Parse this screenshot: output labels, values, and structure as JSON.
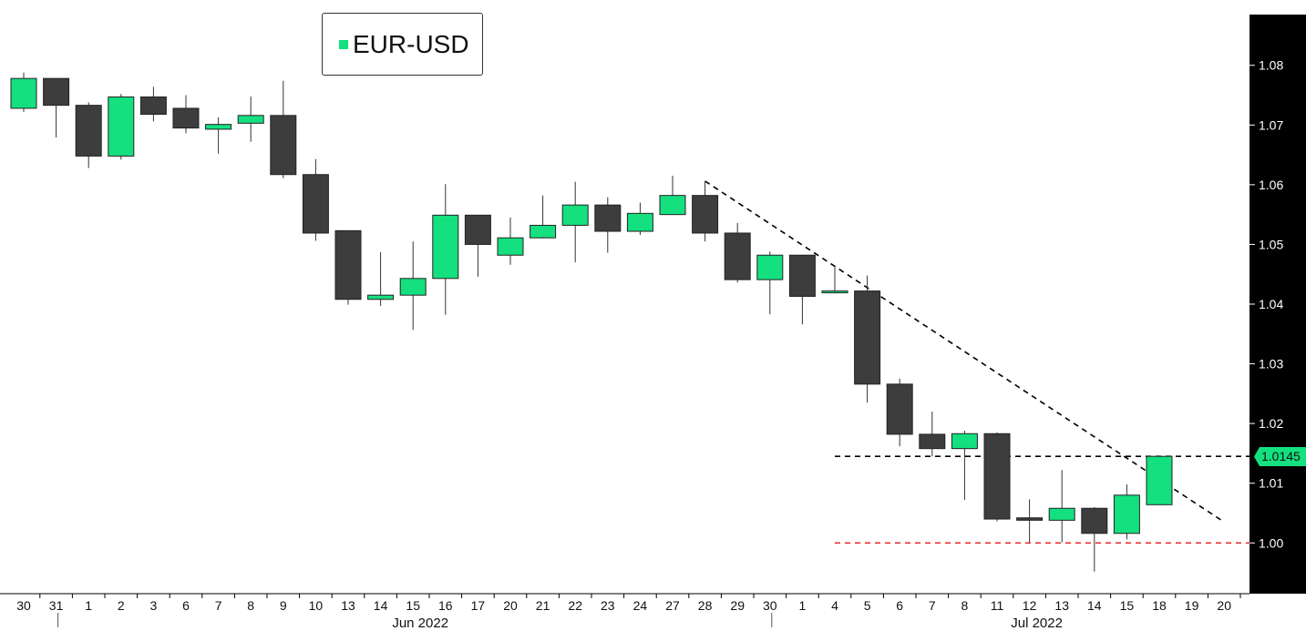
{
  "colors": {
    "up": "#14e07f",
    "down": "#3d3d3d",
    "axis_panel": "#000000",
    "axis_text": "#ffffff",
    "support_line": "#e83030",
    "trend_line": "#000000"
  },
  "legend": {
    "label": "EUR-USD"
  },
  "last_price_tag": "1.0145",
  "chart_data": {
    "type": "candlestick",
    "title": "",
    "series": [
      {
        "name": "EUR-USD"
      }
    ],
    "y_axis": {
      "position": "right",
      "ylim": [
        0.9915,
        1.0885
      ],
      "ticks": [
        "1.00",
        "1.01",
        "1.02",
        "1.03",
        "1.04",
        "1.05",
        "1.06",
        "1.07",
        "1.08"
      ]
    },
    "x_tick_labels": [
      "30",
      "31",
      "1",
      "2",
      "3",
      "6",
      "7",
      "8",
      "9",
      "10",
      "13",
      "14",
      "15",
      "16",
      "17",
      "20",
      "21",
      "22",
      "23",
      "24",
      "27",
      "28",
      "29",
      "30",
      "1",
      "4",
      "5",
      "6",
      "7",
      "8",
      "11",
      "12",
      "13",
      "14",
      "15",
      "18",
      "19",
      "20"
    ],
    "month_labels": [
      {
        "label": "Jun 2022",
        "at_index": 12
      },
      {
        "label": "Jul 2022",
        "at_index": 31
      }
    ],
    "month_separators_at_index": [
      1,
      23
    ],
    "candles": [
      {
        "label": "30",
        "open": 1.0728,
        "high": 1.0788,
        "low": 1.0722,
        "close": 1.0778
      },
      {
        "label": "31",
        "open": 1.0778,
        "high": 1.0778,
        "low": 1.0679,
        "close": 1.0733
      },
      {
        "label": "1",
        "open": 1.0733,
        "high": 1.0738,
        "low": 1.0628,
        "close": 1.0648
      },
      {
        "label": "2",
        "open": 1.0648,
        "high": 1.0752,
        "low": 1.0642,
        "close": 1.0747
      },
      {
        "label": "3",
        "open": 1.0747,
        "high": 1.0764,
        "low": 1.0706,
        "close": 1.0718
      },
      {
        "label": "6",
        "open": 1.0728,
        "high": 1.075,
        "low": 1.0686,
        "close": 1.0695
      },
      {
        "label": "7",
        "open": 1.0693,
        "high": 1.0713,
        "low": 1.0652,
        "close": 1.0701
      },
      {
        "label": "8",
        "open": 1.0703,
        "high": 1.0748,
        "low": 1.0672,
        "close": 1.0716
      },
      {
        "label": "9",
        "open": 1.0716,
        "high": 1.0774,
        "low": 1.0611,
        "close": 1.0617
      },
      {
        "label": "10",
        "open": 1.0617,
        "high": 1.0643,
        "low": 1.0506,
        "close": 1.0519
      },
      {
        "label": "13",
        "open": 1.0523,
        "high": 1.0523,
        "low": 1.0399,
        "close": 1.0408
      },
      {
        "label": "14",
        "open": 1.0408,
        "high": 1.0487,
        "low": 1.0397,
        "close": 1.0415
      },
      {
        "label": "15",
        "open": 1.0415,
        "high": 1.0505,
        "low": 1.0357,
        "close": 1.0443
      },
      {
        "label": "16",
        "open": 1.0443,
        "high": 1.0601,
        "low": 1.0382,
        "close": 1.0549
      },
      {
        "label": "17",
        "open": 1.0549,
        "high": 1.0549,
        "low": 1.0446,
        "close": 1.05
      },
      {
        "label": "20",
        "open": 1.0482,
        "high": 1.0545,
        "low": 1.0466,
        "close": 1.0511
      },
      {
        "label": "21",
        "open": 1.0511,
        "high": 1.0582,
        "low": 1.051,
        "close": 1.0532
      },
      {
        "label": "22",
        "open": 1.0532,
        "high": 1.0605,
        "low": 1.047,
        "close": 1.0566
      },
      {
        "label": "23",
        "open": 1.0566,
        "high": 1.0579,
        "low": 1.0486,
        "close": 1.0522
      },
      {
        "label": "24",
        "open": 1.0522,
        "high": 1.057,
        "low": 1.0516,
        "close": 1.0552
      },
      {
        "label": "27",
        "open": 1.055,
        "high": 1.0615,
        "low": 1.055,
        "close": 1.0582
      },
      {
        "label": "28",
        "open": 1.0582,
        "high": 1.0606,
        "low": 1.0505,
        "close": 1.0519
      },
      {
        "label": "29",
        "open": 1.0519,
        "high": 1.0536,
        "low": 1.0436,
        "close": 1.0441
      },
      {
        "label": "30",
        "open": 1.0441,
        "high": 1.0488,
        "low": 1.0383,
        "close": 1.0482
      },
      {
        "label": "1",
        "open": 1.0482,
        "high": 1.0482,
        "low": 1.0366,
        "close": 1.0413
      },
      {
        "label": "4",
        "open": 1.0422,
        "high": 1.0463,
        "low": 1.0418,
        "close": 1.0422
      },
      {
        "label": "5",
        "open": 1.0422,
        "high": 1.0448,
        "low": 1.0235,
        "close": 1.0266
      },
      {
        "label": "6",
        "open": 1.0266,
        "high": 1.0275,
        "low": 1.0162,
        "close": 1.0182
      },
      {
        "label": "7",
        "open": 1.0182,
        "high": 1.022,
        "low": 1.0145,
        "close": 1.0158
      },
      {
        "label": "8",
        "open": 1.0158,
        "high": 1.0188,
        "low": 1.0072,
        "close": 1.0183
      },
      {
        "label": "11",
        "open": 1.0183,
        "high": 1.0185,
        "low": 1.0036,
        "close": 1.004
      },
      {
        "label": "12",
        "open": 1.0042,
        "high": 1.0073,
        "low": 1.0001,
        "close": 1.0038
      },
      {
        "label": "13",
        "open": 1.0038,
        "high": 1.0122,
        "low": 1.0001,
        "close": 1.0058
      },
      {
        "label": "14",
        "open": 1.0058,
        "high": 1.006,
        "low": 0.9952,
        "close": 1.0016
      },
      {
        "label": "15",
        "open": 1.0016,
        "high": 1.0098,
        "low": 1.0006,
        "close": 1.008
      },
      {
        "label": "18",
        "open": 1.0064,
        "high": 1.0145,
        "low": 1.0064,
        "close": 1.0145
      }
    ],
    "annotations": [
      {
        "kind": "trend_line",
        "style": "dashed",
        "from": {
          "index": 21,
          "y": 1.0606
        },
        "to": {
          "index": 37,
          "y": 1.0035
        }
      },
      {
        "kind": "horizontal_line",
        "style": "dashed",
        "y": 1.0145,
        "from_index": 25,
        "color_key": "trend_line"
      },
      {
        "kind": "horizontal_line",
        "style": "dashed",
        "y": 1.0,
        "from_index": 25,
        "color_key": "support_line"
      }
    ],
    "grid": false,
    "legend_position": "top-left"
  }
}
